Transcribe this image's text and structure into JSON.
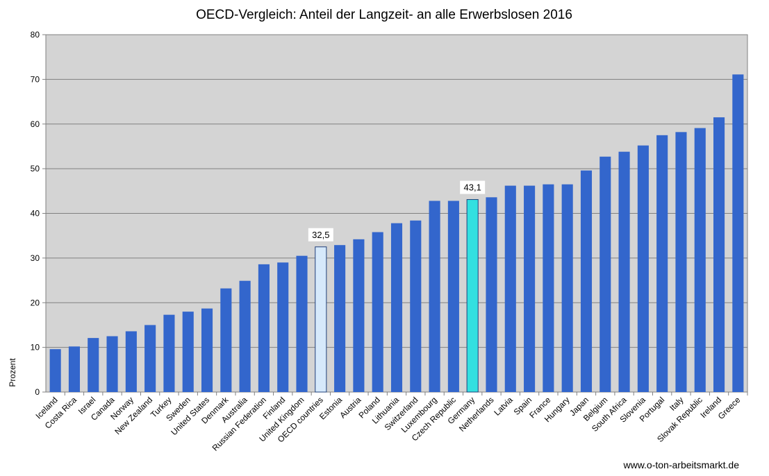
{
  "chart_data": {
    "type": "bar",
    "title": "OECD-Vergleich: Anteil der Langzeit- an alle Erwerbslosen 2016",
    "xlabel": "",
    "ylabel": "Prozent",
    "ylim": [
      0,
      80
    ],
    "yticks": [
      0,
      10,
      20,
      30,
      40,
      50,
      60,
      70,
      80
    ],
    "grid": true,
    "legend": "none",
    "categories": [
      "Iceland",
      "Costa Rica",
      "Israel",
      "Canada",
      "Norway",
      "New Zealand",
      "Turkey",
      "Sweden",
      "United States",
      "Denmark",
      "Australia",
      "Russian Federation",
      "Finland",
      "United Kingdom",
      "OECD countries",
      "Estonia",
      "Austria",
      "Poland",
      "Lithuania",
      "Switzerland",
      "Luxembourg",
      "Czech Republic",
      "Germany",
      "Netherlands",
      "Latvia",
      "Spain",
      "France",
      "Hungary",
      "Japan",
      "Belgium",
      "South Africa",
      "Slovenia",
      "Portugal",
      "Italy",
      "Slovak Republic",
      "Ireland",
      "Greece"
    ],
    "values": [
      9.6,
      10.2,
      12.1,
      12.5,
      13.6,
      15.0,
      17.3,
      18.0,
      18.7,
      23.2,
      24.9,
      28.6,
      29.0,
      30.5,
      32.5,
      32.9,
      34.2,
      35.8,
      37.8,
      38.4,
      42.8,
      42.8,
      43.1,
      43.6,
      46.2,
      46.2,
      46.5,
      46.5,
      49.6,
      52.7,
      53.8,
      55.2,
      57.5,
      58.2,
      59.1,
      61.5,
      71.1
    ],
    "highlights": [
      {
        "category": "OECD countries",
        "label": "32,5",
        "color": "#d6e9fb"
      },
      {
        "category": "Germany",
        "label": "43,1",
        "color": "#33e0e0"
      }
    ],
    "bar_color": "#3366cc",
    "plot_background": "#d4d4d4",
    "source_text": "www.o-ton-arbeitsmarkt.de"
  }
}
